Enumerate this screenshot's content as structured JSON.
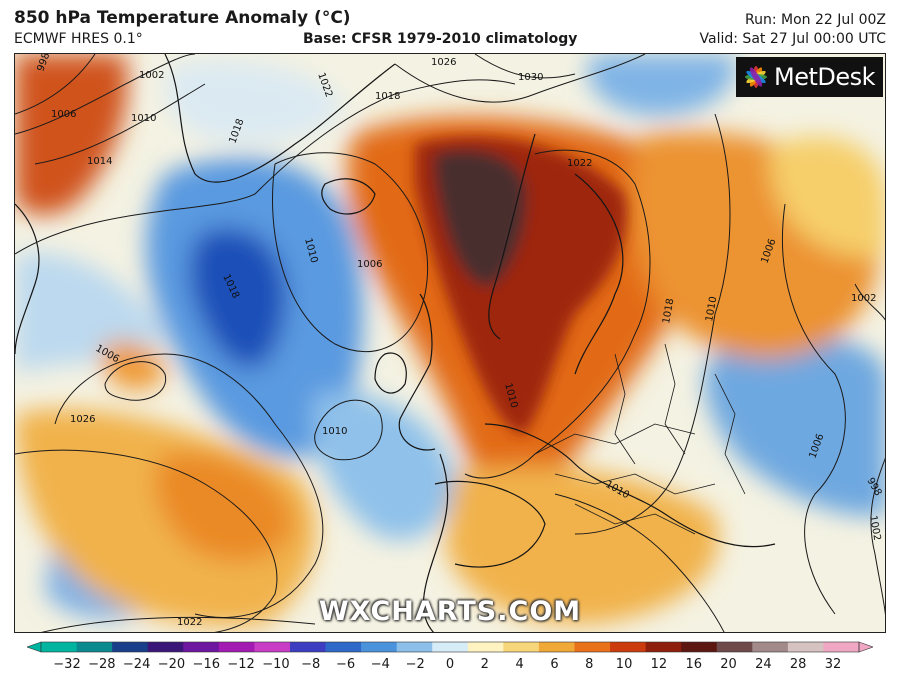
{
  "header": {
    "title": "850 hPa Temperature Anomaly (°C)",
    "model": "ECMWF HRES 0.1°",
    "base": "Base: CFSR 1979-2010 climatology",
    "run": "Run: Mon 22 Jul 00Z",
    "valid": "Valid: Sat 27 Jul 00:00 UTC"
  },
  "brand": {
    "logo_text": "MetDesk",
    "watermark": "WXCHARTS.COM"
  },
  "isobar_labels": [
    "998",
    "1006",
    "1002",
    "1010",
    "1014",
    "1018",
    "1022",
    "1026",
    "1030",
    "1018",
    "1022",
    "1006",
    "1010",
    "1018",
    "1026",
    "1010",
    "1022",
    "1010",
    "1006",
    "1018",
    "1010",
    "1006",
    "1002",
    "1006",
    "998",
    "1002",
    "1010"
  ],
  "colorbar": {
    "ticks": [
      "−32",
      "−28",
      "−24",
      "−20",
      "−16",
      "−12",
      "−10",
      "−8",
      "−6",
      "−4",
      "−2",
      "0",
      "2",
      "4",
      "6",
      "8",
      "10",
      "12",
      "16",
      "20",
      "24",
      "28",
      "32"
    ],
    "colors": [
      "#00b5a0",
      "#0a8a8f",
      "#1a3f8a",
      "#3a1678",
      "#6d16a0",
      "#a21ab2",
      "#c83cc6",
      "#3d3dc2",
      "#2e69c9",
      "#4a92dc",
      "#8cc0ea",
      "#d6ecf6",
      "#fff3c2",
      "#f7d67a",
      "#f0a837",
      "#e87119",
      "#cc3b0d",
      "#8e1f0c",
      "#5b1710",
      "#6e4a4a",
      "#a38a8a",
      "#d7c2c2",
      "#f0a7c4"
    ]
  },
  "colors": {
    "warm_core": "#4a2d2d",
    "warm_red": "#b12a0c",
    "orange": "#ec8a22",
    "yellow": "#f6cf6b",
    "cool_blue": "#4c8fd6",
    "deep_blue": "#1f50b8",
    "pale": "#e8f1f6"
  }
}
